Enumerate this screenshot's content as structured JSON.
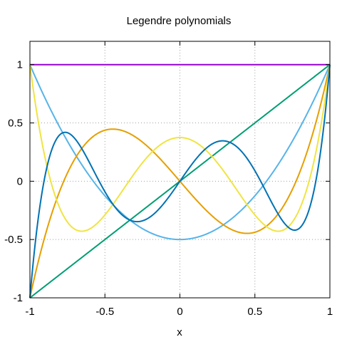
{
  "chart_data": {
    "type": "line",
    "title": "Legendre polynomials",
    "xlabel": "x",
    "ylabel": "",
    "xlim": [
      -1,
      1
    ],
    "ylim": [
      -1,
      1.2
    ],
    "grid": true,
    "grid_style": "dotted",
    "legend": "none",
    "x_ticks": [
      -1,
      -0.5,
      0,
      0.5,
      1
    ],
    "x_tick_labels": [
      "-1",
      "-0.5",
      "0",
      "0.5",
      "1"
    ],
    "y_ticks": [
      -1,
      -0.5,
      0,
      0.5,
      1
    ],
    "y_tick_labels": [
      "-1",
      "-0.5",
      "0",
      "0.5",
      "1"
    ],
    "series": [
      {
        "degree": 0,
        "color": "#9400d3",
        "x": [
          -1,
          1
        ],
        "y": [
          1,
          1
        ]
      },
      {
        "degree": 1,
        "color": "#009e73",
        "x": [
          -1,
          -0.5,
          0,
          0.5,
          1
        ],
        "y": [
          -1,
          -0.5,
          0,
          0.5,
          1
        ]
      },
      {
        "degree": 2,
        "color": "#56b4e9",
        "x": [
          -1,
          -0.75,
          -0.5,
          -0.25,
          0,
          0.25,
          0.5,
          0.75,
          1
        ],
        "y": [
          1,
          0.344,
          -0.125,
          -0.406,
          -0.5,
          -0.406,
          -0.125,
          0.344,
          1
        ]
      },
      {
        "degree": 3,
        "color": "#e69f00",
        "x": [
          -1,
          -0.75,
          -0.447,
          -0.25,
          0,
          0.25,
          0.447,
          0.75,
          1
        ],
        "y": [
          -1,
          0.07,
          0.447,
          0.336,
          0,
          -0.336,
          -0.447,
          -0.07,
          1
        ]
      },
      {
        "degree": 4,
        "color": "#f0e442",
        "x": [
          -1,
          -0.9,
          -0.655,
          -0.5,
          -0.25,
          0,
          0.25,
          0.5,
          0.655,
          0.9,
          1
        ],
        "y": [
          1,
          0.206,
          -0.43,
          -0.289,
          0.175,
          0.375,
          0.175,
          -0.289,
          -0.43,
          0.206,
          1
        ]
      },
      {
        "degree": 5,
        "color": "#0072b2",
        "x": [
          -1,
          -0.9,
          -0.765,
          -0.5,
          -0.285,
          0,
          0.285,
          0.5,
          0.765,
          0.9,
          1
        ],
        "y": [
          -1,
          0.112,
          0.42,
          -0.09,
          -0.346,
          0,
          0.346,
          0.09,
          -0.42,
          -0.112,
          1
        ]
      }
    ]
  }
}
